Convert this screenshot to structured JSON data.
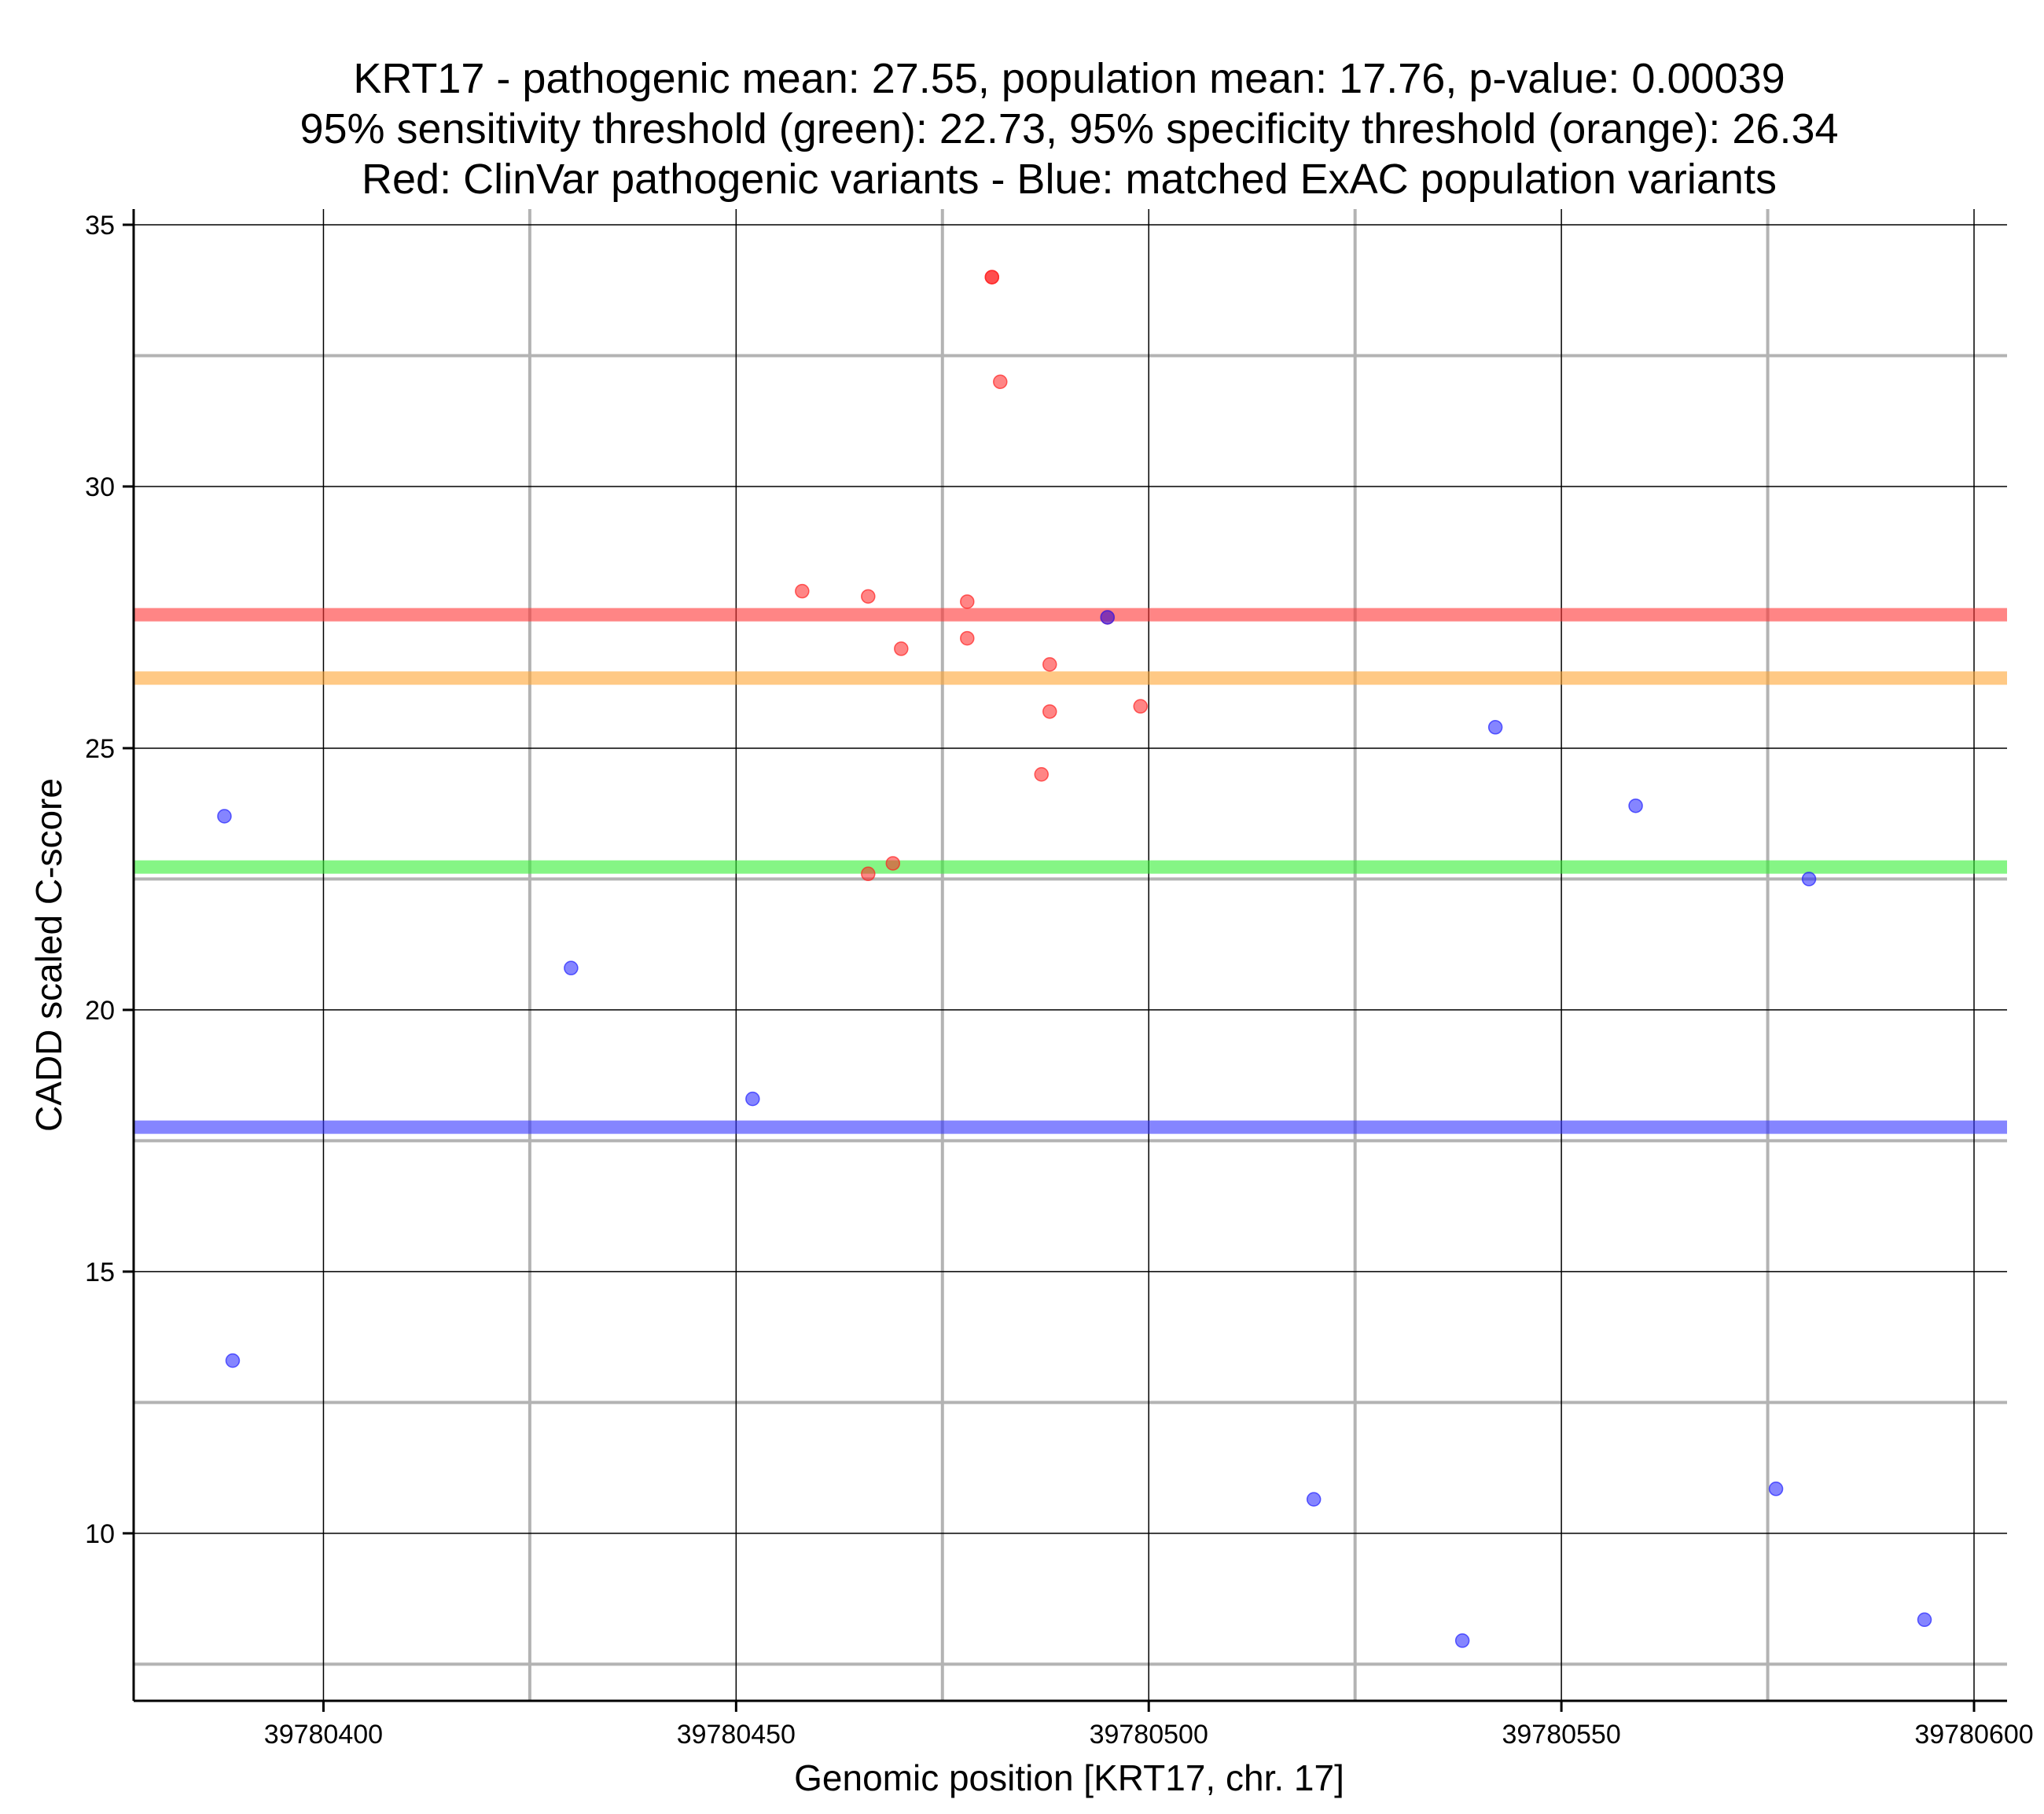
{
  "chart_data": {
    "type": "scatter",
    "title_lines": [
      "KRT17 - pathogenic mean: 27.55, population mean: 17.76, p-value: 0.00039",
      "95% sensitivity threshold (green): 22.73, 95% specificity threshold (orange): 26.34",
      "Red: ClinVar pathogenic variants - Blue: matched ExAC population variants"
    ],
    "xlabel": "Genomic position [KRT17, chr. 17]",
    "ylabel": "CADD scaled C-score",
    "xlim": [
      39780377,
      39780604
    ],
    "ylim": [
      6.8,
      35.3
    ],
    "x_ticks": [
      39780400,
      39780450,
      39780500,
      39780550,
      39780600
    ],
    "x_tick_labels": [
      "39780400",
      "39780450",
      "39780500",
      "39780550",
      "39780600"
    ],
    "x_minor_gridlines": [
      39780425,
      39780475,
      39780525,
      39780575
    ],
    "y_ticks": [
      10,
      15,
      20,
      25,
      30,
      35
    ],
    "y_tick_labels": [
      "10",
      "15",
      "20",
      "25",
      "30",
      "35"
    ],
    "y_minor_gridlines": [
      7.5,
      12.5,
      17.5,
      22.5,
      32.5
    ],
    "grid": true,
    "reference_lines": [
      {
        "name": "pathogenic mean",
        "value": 27.55,
        "color": "#ff3333"
      },
      {
        "name": "95% specificity threshold",
        "value": 26.34,
        "color": "#ffa533"
      },
      {
        "name": "95% sensitivity threshold",
        "value": 22.73,
        "color": "#33ee33"
      },
      {
        "name": "population mean",
        "value": 17.76,
        "color": "#3333ff"
      }
    ],
    "series": [
      {
        "name": "ClinVar pathogenic variants",
        "color": "#ff2020",
        "points": [
          {
            "x": 39780481,
            "y": 34.0
          },
          {
            "x": 39780481,
            "y": 34.0
          },
          {
            "x": 39780482,
            "y": 32.0
          },
          {
            "x": 39780458,
            "y": 28.0
          },
          {
            "x": 39780466,
            "y": 27.9
          },
          {
            "x": 39780478,
            "y": 27.8
          },
          {
            "x": 39780495,
            "y": 27.5
          },
          {
            "x": 39780478,
            "y": 27.1
          },
          {
            "x": 39780470,
            "y": 26.9
          },
          {
            "x": 39780488,
            "y": 26.6
          },
          {
            "x": 39780499,
            "y": 25.8
          },
          {
            "x": 39780488,
            "y": 25.7
          },
          {
            "x": 39780487,
            "y": 24.5
          },
          {
            "x": 39780469,
            "y": 22.8
          },
          {
            "x": 39780466,
            "y": 22.6
          }
        ]
      },
      {
        "name": "matched ExAC population variants",
        "color": "#2020ff",
        "points": [
          {
            "x": 39780495,
            "y": 27.5
          },
          {
            "x": 39780542,
            "y": 25.4
          },
          {
            "x": 39780559,
            "y": 23.9
          },
          {
            "x": 39780388,
            "y": 23.7
          },
          {
            "x": 39780580,
            "y": 22.5
          },
          {
            "x": 39780430,
            "y": 20.8
          },
          {
            "x": 39780452,
            "y": 18.3
          },
          {
            "x": 39780389,
            "y": 13.3
          },
          {
            "x": 39780576,
            "y": 10.85
          },
          {
            "x": 39780520,
            "y": 10.65
          },
          {
            "x": 39780594,
            "y": 8.35
          },
          {
            "x": 39780538,
            "y": 7.95
          }
        ]
      }
    ]
  }
}
